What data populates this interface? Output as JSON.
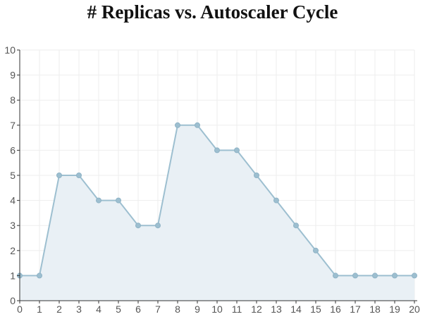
{
  "chart_data": {
    "type": "area",
    "title": "# Replicas vs. Autoscaler Cycle",
    "xlabel": "",
    "ylabel": "",
    "x": [
      0,
      1,
      2,
      3,
      4,
      5,
      6,
      7,
      8,
      9,
      10,
      11,
      12,
      13,
      14,
      15,
      16,
      17,
      18,
      19,
      20
    ],
    "series": [
      {
        "values": [
          1,
          1,
          5,
          5,
          4,
          4,
          3,
          3,
          7,
          7,
          6,
          6,
          5,
          4,
          3,
          2,
          1,
          1,
          1,
          1,
          1
        ]
      }
    ],
    "xlim": [
      0,
      20
    ],
    "ylim": [
      0,
      10
    ],
    "xticks": [
      "0",
      "1",
      "2",
      "3",
      "4",
      "5",
      "6",
      "7",
      "8",
      "9",
      "10",
      "11",
      "12",
      "13",
      "14",
      "15",
      "16",
      "17",
      "18",
      "19",
      "20"
    ],
    "yticks": [
      "0",
      "1",
      "2",
      "3",
      "4",
      "5",
      "6",
      "7",
      "8",
      "9",
      "10"
    ],
    "grid": true,
    "legend": "none",
    "colors": {
      "line": "#9dbfd0",
      "fill": "#e9f0f5",
      "point": "#9dbfd0",
      "grid": "#eeeeee",
      "axis": "#333333"
    }
  }
}
